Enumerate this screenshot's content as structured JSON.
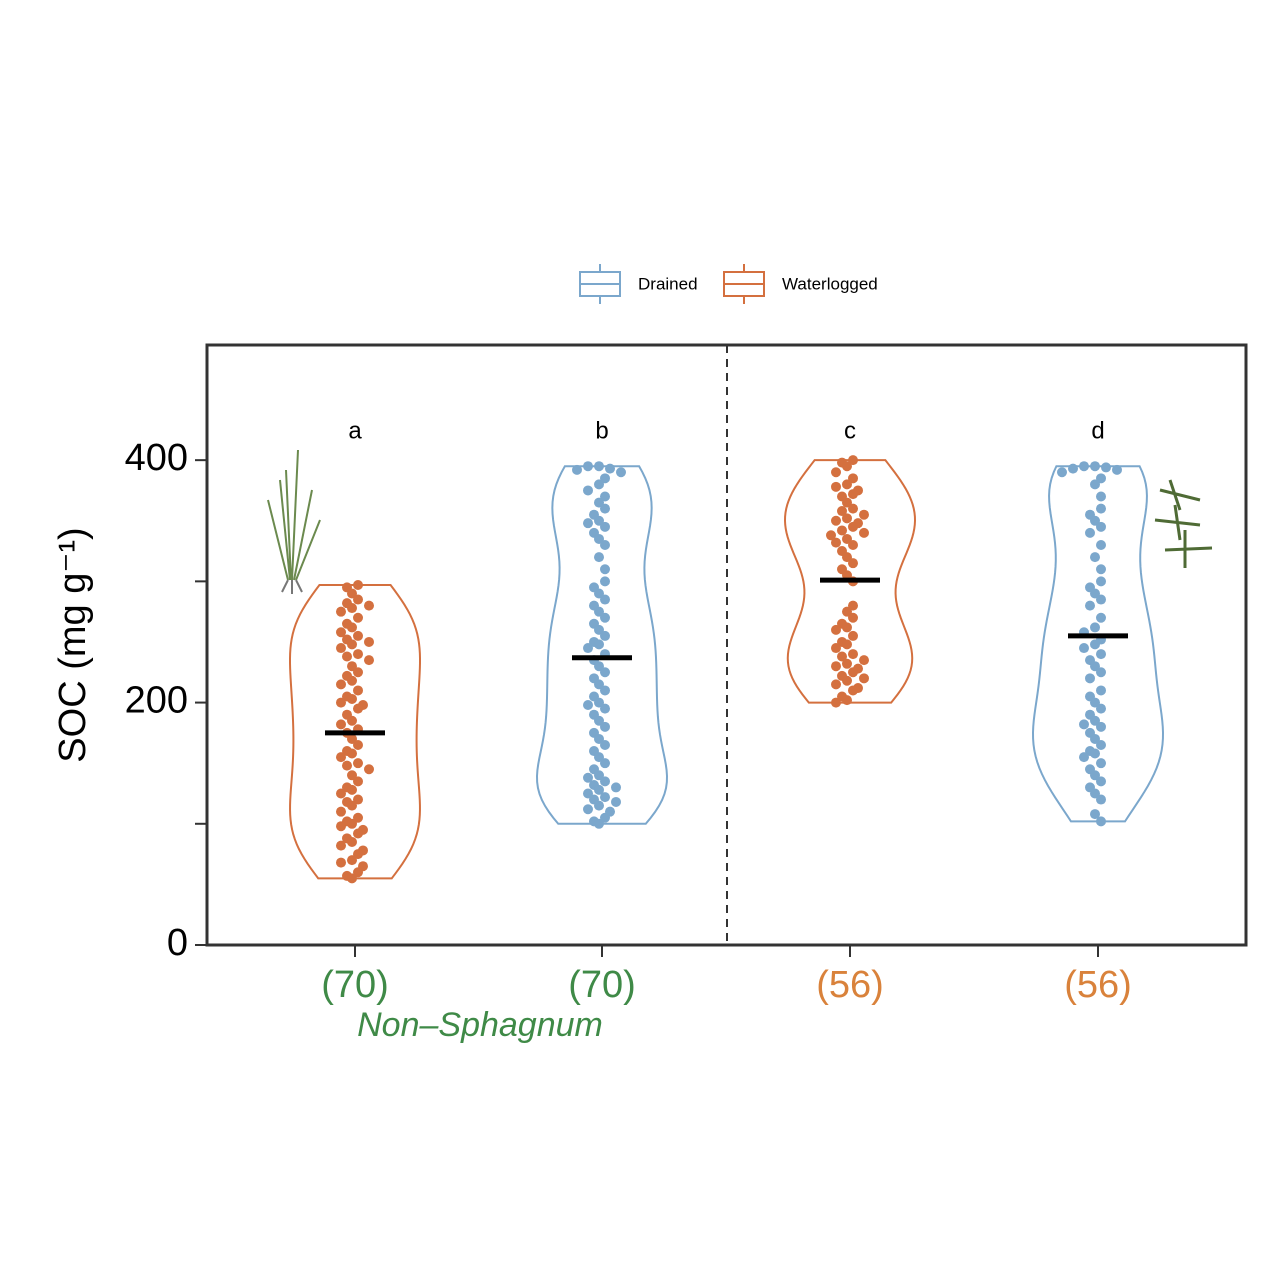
{
  "chart_data": {
    "type": "violin",
    "y_label": "SOC (mg g⁻¹)",
    "ylim": [
      0,
      495
    ],
    "yticks": [
      0,
      200,
      400
    ],
    "minor_yticks": [
      100,
      300
    ],
    "categories": [
      "(70)",
      "(70)",
      "(56)",
      "(56)"
    ],
    "category_colors": [
      "#3f8a47",
      "#3f8a47",
      "#d9823b",
      "#d9823b"
    ],
    "group_label": "Non–Sphagnum",
    "group_label_color": "#3f8a47",
    "letters": [
      "a",
      "b",
      "c",
      "d"
    ],
    "series": [
      {
        "name": "Drained",
        "color": "#7ba7cc",
        "values": [
          null,
          [
            395,
            395,
            393,
            392,
            390,
            385,
            380,
            375,
            370,
            365,
            360,
            355,
            350,
            348,
            345,
            340,
            335,
            330,
            320,
            310,
            300,
            295,
            290,
            285,
            280,
            275,
            270,
            265,
            260,
            255,
            250,
            248,
            245,
            240,
            235,
            230,
            225,
            220,
            215,
            210,
            205,
            200,
            198,
            195,
            190,
            185,
            180,
            175,
            170,
            165,
            160,
            155,
            150,
            145,
            140,
            138,
            135,
            132,
            130,
            128,
            125,
            122,
            120,
            118,
            115,
            112,
            110,
            105,
            102,
            100
          ],
          null,
          [
            395,
            395,
            394,
            393,
            392,
            390,
            385,
            380,
            370,
            360,
            355,
            350,
            345,
            340,
            330,
            320,
            310,
            300,
            295,
            290,
            285,
            280,
            270,
            262,
            258,
            252,
            248,
            245,
            240,
            235,
            230,
            225,
            220,
            210,
            205,
            200,
            195,
            190,
            185,
            182,
            180,
            175,
            170,
            165,
            160,
            158,
            155,
            150,
            145,
            140,
            135,
            130,
            125,
            120,
            108,
            102
          ]
        ],
        "means": [
          null,
          237,
          null,
          255
        ]
      },
      {
        "name": "Waterlogged",
        "color": "#d4703f",
        "values": [
          [
            297,
            295,
            290,
            285,
            282,
            280,
            278,
            275,
            270,
            265,
            262,
            258,
            255,
            252,
            250,
            248,
            245,
            240,
            238,
            235,
            230,
            225,
            222,
            218,
            215,
            210,
            205,
            203,
            200,
            198,
            195,
            190,
            185,
            182,
            178,
            175,
            170,
            165,
            160,
            158,
            155,
            150,
            148,
            145,
            140,
            135,
            130,
            128,
            125,
            120,
            118,
            115,
            110,
            105,
            102,
            100,
            98,
            95,
            92,
            88,
            85,
            82,
            78,
            75,
            70,
            68,
            65,
            60,
            57,
            55
          ],
          null,
          [
            400,
            398,
            395,
            390,
            385,
            380,
            378,
            375,
            372,
            370,
            365,
            360,
            358,
            355,
            352,
            350,
            348,
            345,
            342,
            340,
            338,
            335,
            332,
            330,
            325,
            320,
            315,
            310,
            305,
            300,
            280,
            275,
            270,
            265,
            262,
            260,
            255,
            250,
            248,
            245,
            240,
            238,
            235,
            232,
            230,
            228,
            225,
            222,
            220,
            218,
            215,
            212,
            210,
            205,
            202,
            200
          ],
          null
        ],
        "means": [
          175,
          null,
          301,
          null
        ]
      }
    ]
  }
}
